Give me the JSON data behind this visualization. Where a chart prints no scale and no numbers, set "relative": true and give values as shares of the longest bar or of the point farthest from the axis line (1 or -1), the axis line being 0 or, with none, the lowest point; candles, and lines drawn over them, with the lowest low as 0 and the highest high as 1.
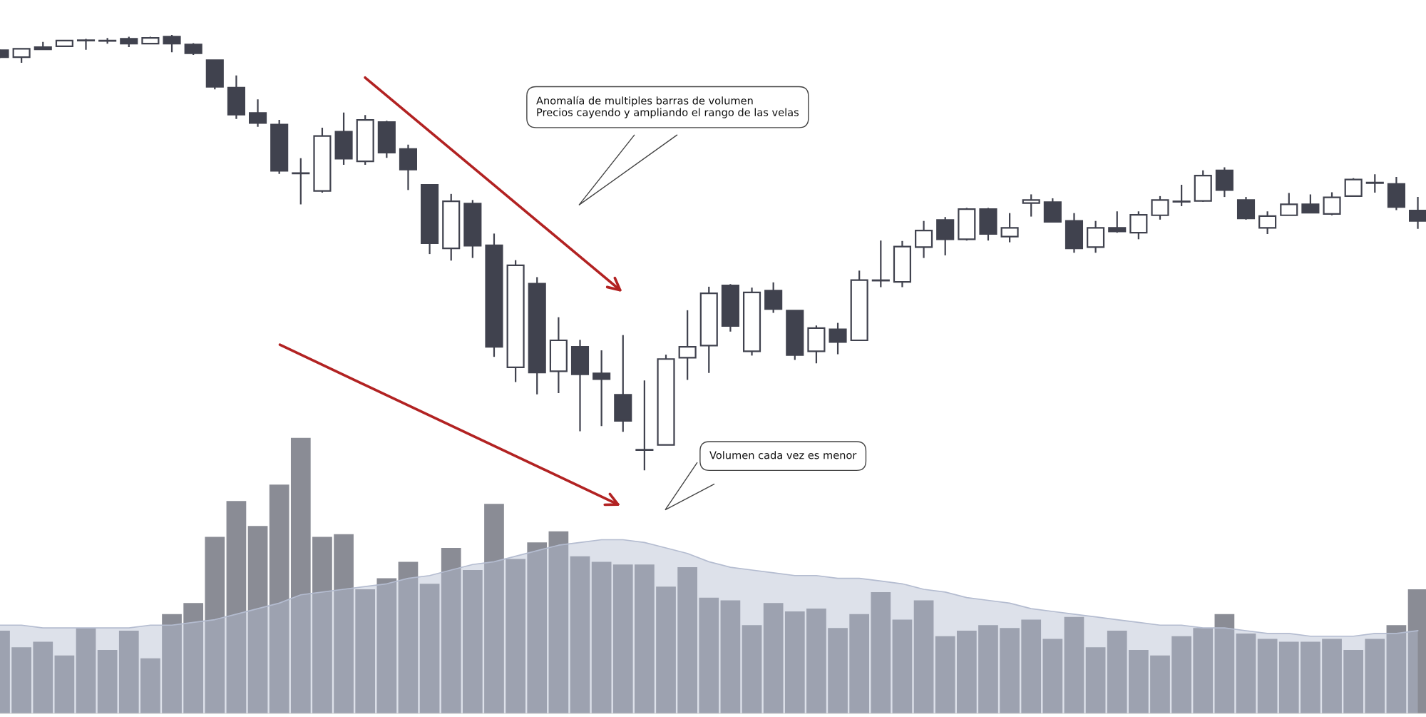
{
  "chart_data": [
    {
      "type": "candlestick",
      "relative": true,
      "tick_labels": false,
      "color": "#40424e",
      "categories": [
        null,
        null,
        null,
        null,
        null,
        null,
        null,
        null,
        null,
        null,
        null,
        null,
        null,
        null,
        null,
        null,
        null,
        null,
        null,
        null,
        null,
        null,
        null,
        null,
        null,
        null,
        null,
        null,
        null,
        null,
        null,
        null,
        null,
        null,
        null,
        null,
        null,
        null,
        null,
        null,
        null,
        null,
        null,
        null,
        null,
        null,
        null,
        null,
        null,
        null,
        null,
        null,
        null,
        null,
        null,
        null,
        null,
        null,
        null,
        null,
        null,
        null,
        null,
        null,
        null,
        null,
        null
      ],
      "ohlc": [
        [
          0.965,
          0.966,
          0.947,
          0.949
        ],
        [
          0.949,
          0.968,
          0.936,
          0.968
        ],
        [
          0.972,
          0.984,
          0.967,
          0.967
        ],
        [
          0.974,
          0.987,
          0.974,
          0.987
        ],
        [
          0.987,
          0.991,
          0.966,
          0.988
        ],
        [
          0.986,
          0.993,
          0.98,
          0.987
        ],
        [
          0.991,
          0.996,
          0.972,
          0.98
        ],
        [
          0.98,
          0.996,
          0.98,
          0.993
        ],
        [
          0.996,
          1.0,
          0.96,
          0.98
        ],
        [
          0.978,
          0.981,
          0.954,
          0.958
        ],
        [
          0.942,
          0.942,
          0.875,
          0.881
        ],
        [
          0.879,
          0.907,
          0.807,
          0.817
        ],
        [
          0.821,
          0.852,
          0.789,
          0.798
        ],
        [
          0.794,
          0.805,
          0.681,
          0.688
        ],
        [
          0.683,
          0.717,
          0.611,
          0.682
        ],
        [
          0.642,
          0.787,
          0.638,
          0.768
        ],
        [
          0.778,
          0.822,
          0.702,
          0.716
        ],
        [
          0.71,
          0.816,
          0.702,
          0.805
        ],
        [
          0.8,
          0.803,
          0.718,
          0.73
        ],
        [
          0.738,
          0.748,
          0.644,
          0.691
        ],
        [
          0.656,
          0.656,
          0.497,
          0.522
        ],
        [
          0.51,
          0.635,
          0.482,
          0.618
        ],
        [
          0.613,
          0.621,
          0.488,
          0.516
        ],
        [
          0.517,
          0.544,
          0.261,
          0.284
        ],
        [
          0.237,
          0.483,
          0.203,
          0.471
        ],
        [
          0.429,
          0.444,
          0.175,
          0.225
        ],
        [
          0.228,
          0.352,
          0.178,
          0.299
        ],
        [
          0.284,
          0.3,
          0.09,
          0.221
        ],
        [
          0.223,
          0.276,
          0.102,
          0.21
        ],
        [
          0.174,
          0.311,
          0.089,
          0.114
        ],
        [
          0.047,
          0.207,
          0.0,
          0.048
        ],
        [
          0.059,
          0.266,
          0.059,
          0.256
        ],
        [
          0.259,
          0.368,
          0.208,
          0.284
        ],
        [
          0.287,
          0.422,
          0.224,
          0.407
        ],
        [
          0.425,
          0.428,
          0.319,
          0.332
        ],
        [
          0.274,
          0.42,
          0.264,
          0.409
        ],
        [
          0.413,
          0.432,
          0.362,
          0.371
        ],
        [
          0.367,
          0.367,
          0.254,
          0.265
        ],
        [
          0.274,
          0.333,
          0.246,
          0.327
        ],
        [
          0.324,
          0.339,
          0.267,
          0.295
        ],
        [
          0.299,
          0.459,
          0.299,
          0.437
        ],
        [
          0.436,
          0.528,
          0.421,
          0.437
        ],
        [
          0.433,
          0.527,
          0.421,
          0.514
        ],
        [
          0.513,
          0.573,
          0.488,
          0.551
        ],
        [
          0.575,
          0.582,
          0.494,
          0.531
        ],
        [
          0.531,
          0.603,
          0.528,
          0.6
        ],
        [
          0.6,
          0.603,
          0.528,
          0.543
        ],
        [
          0.537,
          0.591,
          0.524,
          0.557
        ],
        [
          0.614,
          0.634,
          0.583,
          0.621
        ],
        [
          0.616,
          0.625,
          0.571,
          0.571
        ],
        [
          0.573,
          0.591,
          0.5,
          0.51
        ],
        [
          0.513,
          0.573,
          0.5,
          0.557
        ],
        [
          0.557,
          0.595,
          0.546,
          0.549
        ],
        [
          0.546,
          0.595,
          0.531,
          0.587
        ],
        [
          0.586,
          0.63,
          0.576,
          0.621
        ],
        [
          0.617,
          0.656,
          0.607,
          0.618
        ],
        [
          0.619,
          0.689,
          0.617,
          0.677
        ],
        [
          0.689,
          0.696,
          0.628,
          0.644
        ],
        [
          0.621,
          0.628,
          0.576,
          0.579
        ],
        [
          0.557,
          0.595,
          0.543,
          0.584
        ],
        [
          0.586,
          0.637,
          0.586,
          0.611
        ],
        [
          0.611,
          0.634,
          0.592,
          0.592
        ],
        [
          0.589,
          0.639,
          0.586,
          0.627
        ],
        [
          0.63,
          0.671,
          0.63,
          0.668
        ],
        [
          0.66,
          0.68,
          0.638,
          0.661
        ],
        [
          0.658,
          0.674,
          0.598,
          0.605
        ],
        [
          0.597,
          0.628,
          0.555,
          0.573
        ]
      ],
      "annotations": [
        "Anomalía de multiples barras de volumen\nPrecios cayendo y ampliando el rango de las velas"
      ]
    },
    {
      "type": "bar",
      "relative": true,
      "tick_labels": false,
      "categories": [
        null,
        null,
        null,
        null,
        null,
        null,
        null,
        null,
        null,
        null,
        null,
        null,
        null,
        null,
        null,
        null,
        null,
        null,
        null,
        null,
        null,
        null,
        null,
        null,
        null,
        null,
        null,
        null,
        null,
        null,
        null,
        null,
        null,
        null,
        null,
        null,
        null,
        null,
        null,
        null,
        null,
        null,
        null,
        null,
        null,
        null,
        null,
        null,
        null,
        null,
        null,
        null,
        null,
        null,
        null,
        null,
        null,
        null,
        null,
        null,
        null,
        null,
        null,
        null,
        null,
        null,
        null
      ],
      "series": [
        {
          "type": "bar",
          "color": "#8a8c95",
          "values": [
            0.3,
            0.24,
            0.26,
            0.21,
            0.31,
            0.23,
            0.3,
            0.2,
            0.36,
            0.4,
            0.64,
            0.77,
            0.68,
            0.83,
            1.0,
            0.64,
            0.65,
            0.45,
            0.49,
            0.55,
            0.47,
            0.6,
            0.52,
            0.76,
            0.56,
            0.62,
            0.66,
            0.57,
            0.55,
            0.54,
            0.54,
            0.46,
            0.53,
            0.42,
            0.41,
            0.32,
            0.4,
            0.37,
            0.38,
            0.31,
            0.36,
            0.44,
            0.34,
            0.41,
            0.28,
            0.3,
            0.32,
            0.31,
            0.34,
            0.27,
            0.35,
            0.24,
            0.3,
            0.23,
            0.21,
            0.28,
            0.31,
            0.36,
            0.29,
            0.27,
            0.26,
            0.26,
            0.27,
            0.23,
            0.27,
            0.32,
            0.45
          ]
        },
        {
          "type": "area",
          "color": "#b4bcd0",
          "values": [
            0.32,
            0.32,
            0.31,
            0.31,
            0.31,
            0.31,
            0.31,
            0.32,
            0.32,
            0.33,
            0.34,
            0.36,
            0.38,
            0.4,
            0.43,
            0.44,
            0.45,
            0.46,
            0.47,
            0.49,
            0.5,
            0.52,
            0.54,
            0.55,
            0.57,
            0.59,
            0.61,
            0.62,
            0.63,
            0.63,
            0.62,
            0.6,
            0.58,
            0.55,
            0.53,
            0.52,
            0.51,
            0.5,
            0.5,
            0.49,
            0.49,
            0.48,
            0.47,
            0.45,
            0.44,
            0.42,
            0.41,
            0.4,
            0.38,
            0.37,
            0.36,
            0.35,
            0.34,
            0.33,
            0.32,
            0.32,
            0.31,
            0.31,
            0.3,
            0.29,
            0.29,
            0.28,
            0.28,
            0.28,
            0.29,
            0.29,
            0.3
          ]
        }
      ],
      "annotations": [
        "Volumen cada vez es menor"
      ]
    }
  ]
}
